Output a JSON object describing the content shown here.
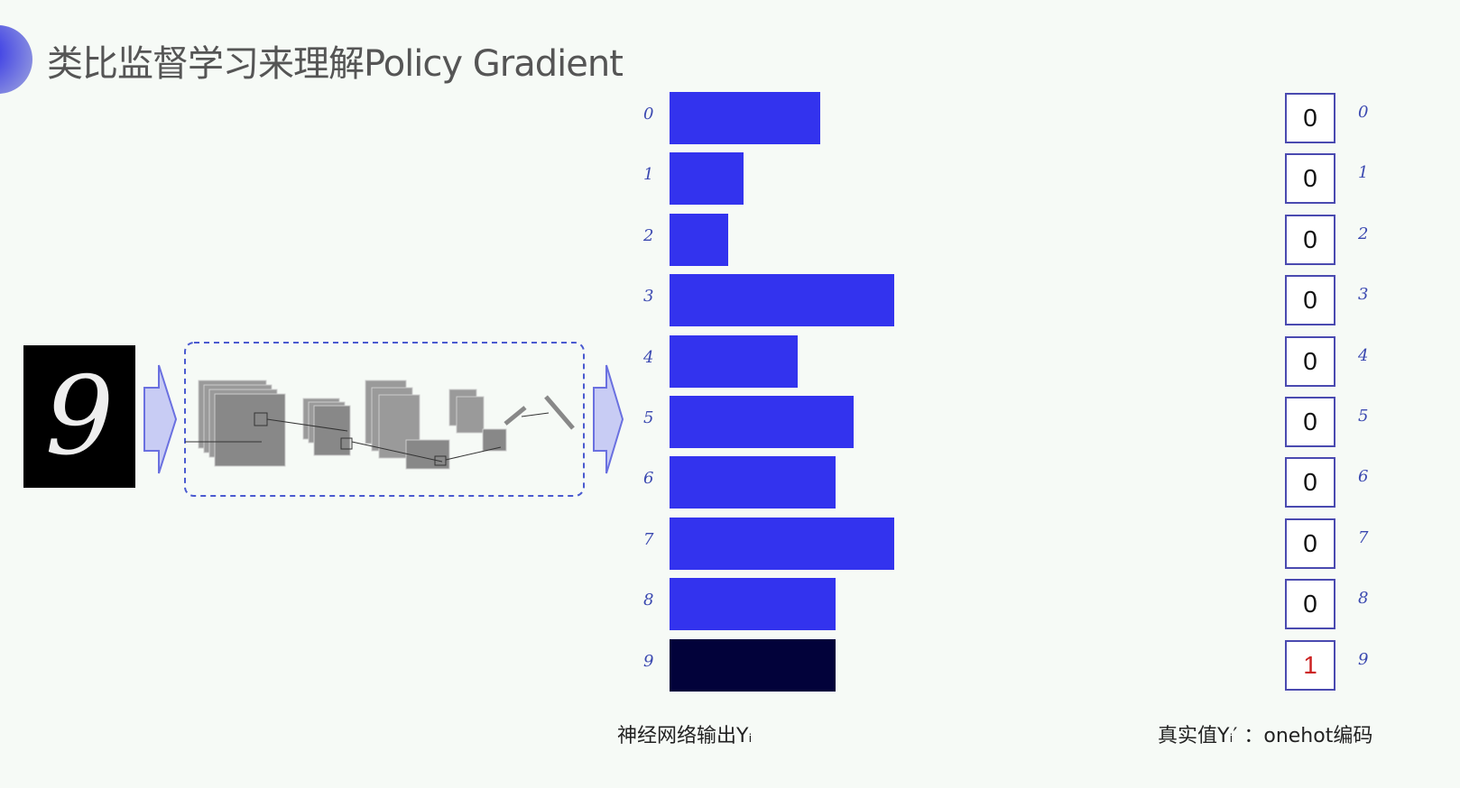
{
  "title": "类比监督学习来理解Policy Gradient",
  "input_digit": "9",
  "nn_output": {
    "caption": "神经网络输出Yᵢ",
    "labels": [
      "0",
      "1",
      "2",
      "3",
      "4",
      "5",
      "6",
      "7",
      "8",
      "9"
    ],
    "relative_values": [
      0.67,
      0.33,
      0.26,
      1.0,
      0.57,
      0.82,
      0.74,
      1.0,
      0.74,
      0.74
    ],
    "bar_color": "#3333ee",
    "highlight_color": "#02023a",
    "highlight_index": 9
  },
  "onehot": {
    "caption": "真实值Yᵢ′ ：onehot编码",
    "values": [
      "0",
      "0",
      "0",
      "0",
      "0",
      "0",
      "0",
      "0",
      "0",
      "1"
    ],
    "labels": [
      "0",
      "1",
      "2",
      "3",
      "4",
      "5",
      "6",
      "7",
      "8",
      "9"
    ],
    "one_color": "#cc2222"
  }
}
